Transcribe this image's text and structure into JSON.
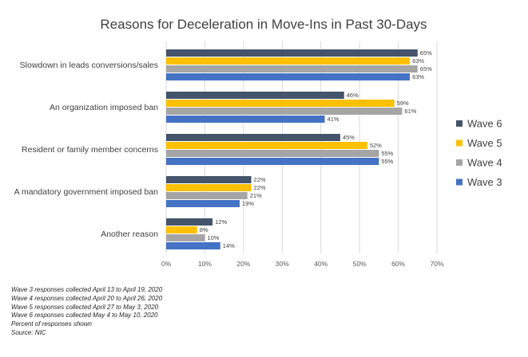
{
  "chart_data": {
    "type": "bar",
    "orientation": "horizontal",
    "title": "Reasons for Deceleration in Move-Ins in Past 30-Days",
    "categories": [
      "Slowdown in leads conversions/sales",
      "An organization imposed ban",
      "Resident or family member concerns",
      "A mandatory government imposed ban",
      "Another reason"
    ],
    "series": [
      {
        "name": "Wave 6",
        "color": "#44546a",
        "values": [
          65,
          46,
          45,
          22,
          12
        ]
      },
      {
        "name": "Wave 5",
        "color": "#ffc000",
        "values": [
          63,
          59,
          52,
          22,
          8
        ]
      },
      {
        "name": "Wave 4",
        "color": "#a5a5a5",
        "values": [
          65,
          61,
          55,
          21,
          10
        ]
      },
      {
        "name": "Wave 3",
        "color": "#4472c4",
        "values": [
          63,
          41,
          55,
          19,
          14
        ]
      }
    ],
    "xlim": [
      0,
      70
    ],
    "xticks": [
      "0%",
      "10%",
      "20%",
      "30%",
      "40%",
      "50%",
      "60%",
      "70%"
    ],
    "value_suffix": "%",
    "xlabel": "",
    "ylabel": "",
    "grid": true,
    "legend_position": "right"
  },
  "notes": [
    "Wave 3 responses collected April 13 to April 19, 2020",
    "Wave 4 responses collected April 20 to April 26, 2020",
    "Wave 5 responses collected April 27 to May 3, 2020",
    "Wave 6 responses collected May 4 to May 10, 2020",
    "Percent of responses shown",
    "Source: NIC"
  ]
}
